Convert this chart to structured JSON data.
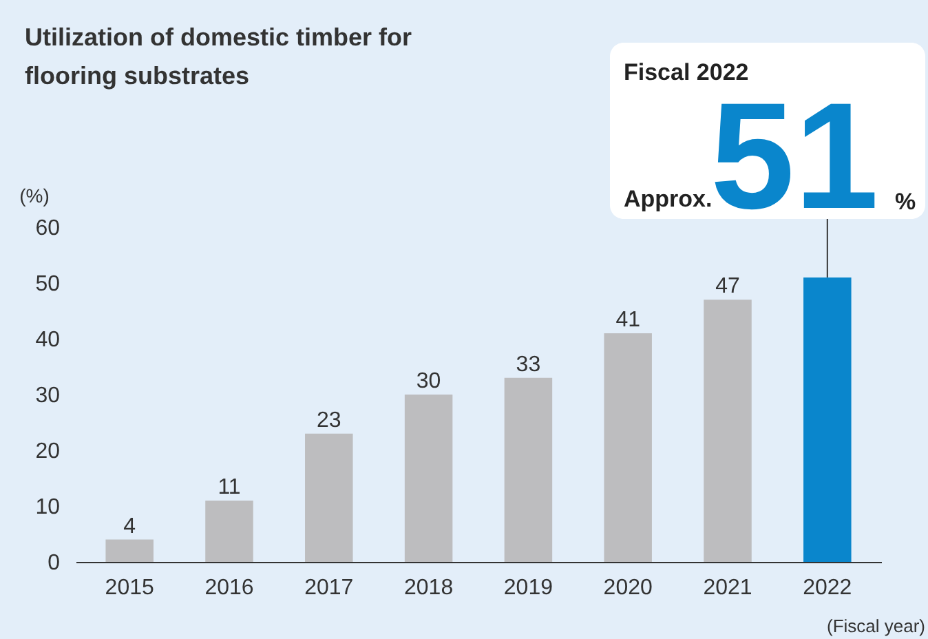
{
  "chart_data": {
    "type": "bar",
    "title": "Utilization of domestic timber for flooring substrates",
    "categories": [
      "2015",
      "2016",
      "2017",
      "2018",
      "2019",
      "2020",
      "2021",
      "2022"
    ],
    "values": [
      4,
      11,
      23,
      30,
      33,
      41,
      47,
      51
    ],
    "colors": [
      "#bdbdbf",
      "#bdbdbf",
      "#bdbdbf",
      "#bdbdbf",
      "#bdbdbf",
      "#bdbdbf",
      "#bdbdbf",
      "#0a86cc"
    ],
    "value_labels": [
      "4",
      "11",
      "23",
      "30",
      "33",
      "41",
      "47",
      null
    ],
    "ylabel": "(%)",
    "xlabel": "(Fiscal year)",
    "ylim": [
      0,
      60
    ],
    "yticks": [
      0,
      10,
      20,
      30,
      40,
      50,
      60
    ],
    "grid": false,
    "annotations": [
      "Fiscal 2022",
      "Approx.",
      {
        "text": "51",
        "x": "2022",
        "y": 51
      },
      "%"
    ]
  }
}
